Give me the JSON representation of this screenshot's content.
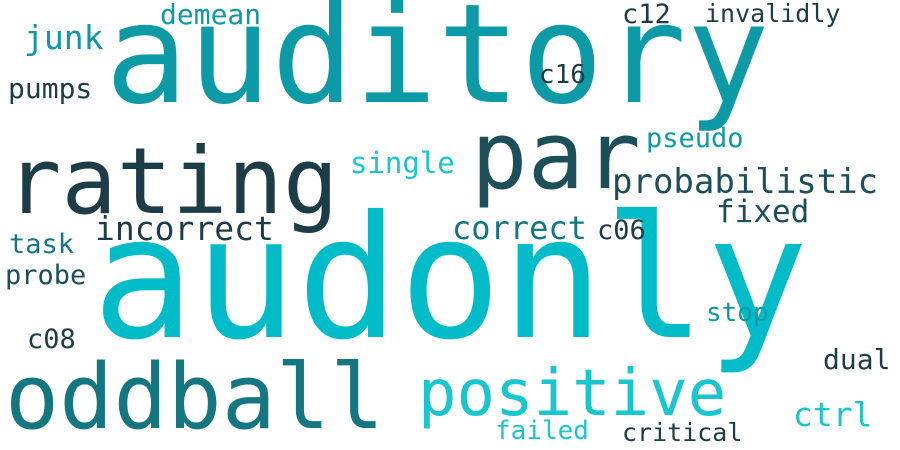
{
  "words": [
    {
      "text": "auditory",
      "color": "#0b9aa6"
    },
    {
      "text": "audonly",
      "color": "#00bcc8"
    },
    {
      "text": "rating",
      "color": "#1c3d45"
    },
    {
      "text": "par",
      "color": "#1c4f57"
    },
    {
      "text": "oddball",
      "color": "#137680"
    },
    {
      "text": "positive",
      "color": "#18c6cf"
    },
    {
      "text": "probabilistic",
      "color": "#1c4f57"
    },
    {
      "text": "incorrect",
      "color": "#1c3d45"
    },
    {
      "text": "correct",
      "color": "#137680"
    },
    {
      "text": "single",
      "color": "#18c6cf"
    },
    {
      "text": "pseudo",
      "color": "#0b9aa6"
    },
    {
      "text": "fixed",
      "color": "#1c4f57"
    },
    {
      "text": "c06",
      "color": "#1c3d45"
    },
    {
      "text": "junk",
      "color": "#0b9aa6"
    },
    {
      "text": "demean",
      "color": "#0b9aa6"
    },
    {
      "text": "pumps",
      "color": "#1c3d45"
    },
    {
      "text": "c16",
      "color": "#1c3d45"
    },
    {
      "text": "c12",
      "color": "#1c3d45"
    },
    {
      "text": "invalidly",
      "color": "#1c3d45"
    },
    {
      "text": "task",
      "color": "#137680"
    },
    {
      "text": "probe",
      "color": "#1c4f57"
    },
    {
      "text": "c08",
      "color": "#1c3d45"
    },
    {
      "text": "stop",
      "color": "#0b9aa6"
    },
    {
      "text": "dual",
      "color": "#1c3d45"
    },
    {
      "text": "ctrl",
      "color": "#18c6cf"
    },
    {
      "text": "failed",
      "color": "#18c6cf"
    },
    {
      "text": "critical",
      "color": "#1c3d45"
    }
  ]
}
